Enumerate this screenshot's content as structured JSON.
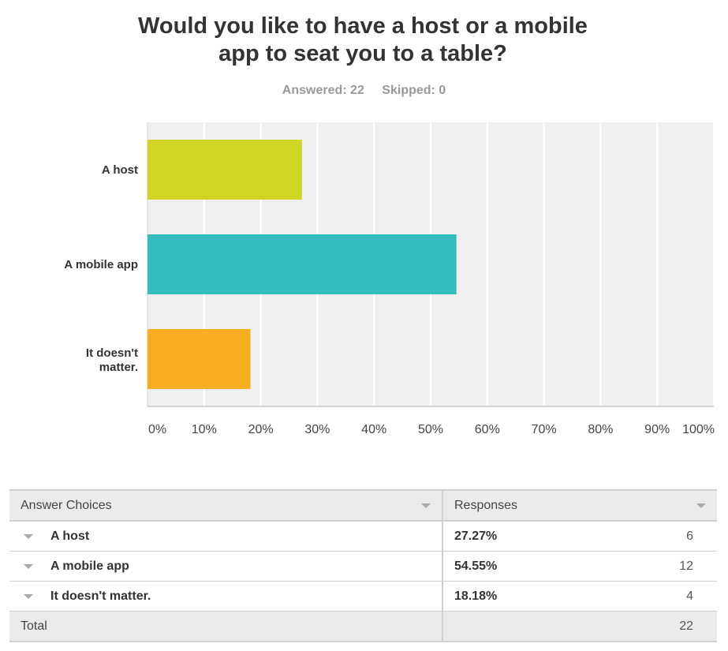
{
  "header": {
    "title_line1": "Would you like to have a host or a mobile",
    "title_line2": "app to seat you to a table?",
    "answered": "Answered: 22",
    "skipped": "Skipped: 0"
  },
  "chart_data": {
    "type": "bar",
    "orientation": "horizontal",
    "categories": [
      "A host",
      "A mobile app",
      "It doesn't matter."
    ],
    "values": [
      27.27,
      54.55,
      18.18
    ],
    "colors": [
      "#cfd425",
      "#33bdbf",
      "#f6ae20"
    ],
    "xlim": [
      0,
      100
    ],
    "x_ticks": [
      "0%",
      "10%",
      "20%",
      "30%",
      "40%",
      "50%",
      "60%",
      "70%",
      "80%",
      "90%",
      "100%"
    ],
    "grid": true,
    "plot_background": "#efefef"
  },
  "table": {
    "header_choice": "Answer Choices",
    "header_responses": "Responses",
    "rows": [
      {
        "choice": "A host",
        "pct": "27.27%",
        "count": "6"
      },
      {
        "choice": "A mobile app",
        "pct": "54.55%",
        "count": "12"
      },
      {
        "choice": "It doesn't matter.",
        "pct": "18.18%",
        "count": "4"
      }
    ],
    "total_label": "Total",
    "total_value": "22"
  }
}
